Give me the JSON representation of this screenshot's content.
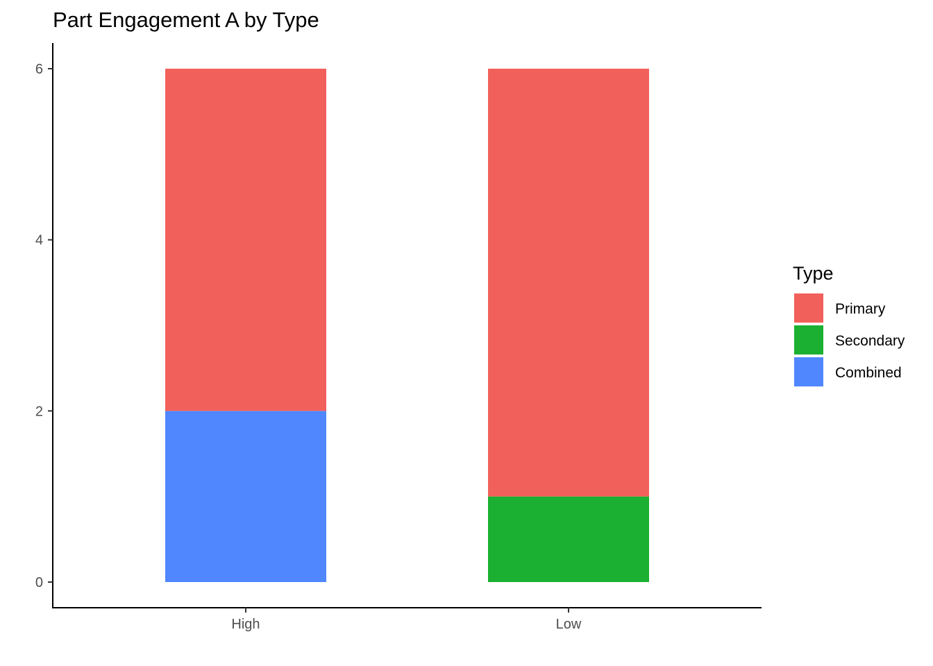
{
  "chart_data": {
    "type": "bar",
    "stacked": true,
    "title": "Part Engagement A by Type",
    "xlabel": "",
    "ylabel": "",
    "categories": [
      "High",
      "Low"
    ],
    "series": [
      {
        "name": "Primary",
        "values": [
          4,
          5
        ],
        "color": "#F2605B"
      },
      {
        "name": "Secondary",
        "values": [
          0,
          1
        ],
        "color": "#1BB031"
      },
      {
        "name": "Combined",
        "values": [
          2,
          0
        ],
        "color": "#5087FF"
      }
    ],
    "stack_order": [
      "Combined",
      "Secondary",
      "Primary"
    ],
    "ylim": [
      0,
      6
    ],
    "yticks": [
      0,
      2,
      4,
      6
    ],
    "grid": false,
    "legend": {
      "title": "Type",
      "position": "right"
    }
  }
}
